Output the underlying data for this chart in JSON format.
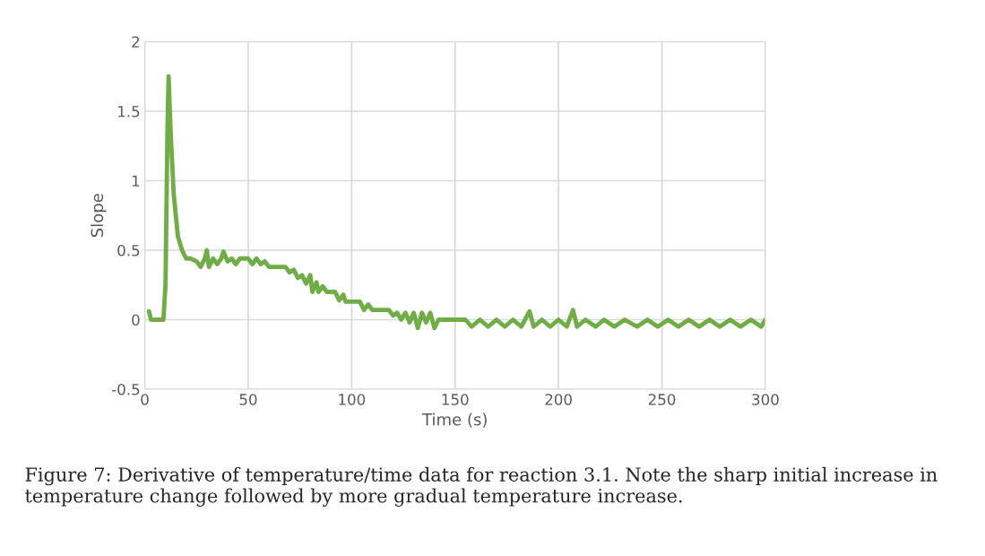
{
  "chart_data": {
    "type": "line",
    "xlabel": "Time (s)",
    "ylabel": "Slope",
    "annotations": [
      "Figure 7: Derivative of temperature/time data for reaction 3.1. Note the sharp initial increase in temperature change followed by more gradual temperature increase."
    ],
    "xlim": [
      0,
      300
    ],
    "xticks": [
      0,
      50,
      100,
      150,
      200,
      250,
      300
    ],
    "ylim": [
      -0.5,
      2
    ],
    "yticks": [
      -0.5,
      0,
      0.5,
      1,
      1.5,
      2
    ],
    "grid": true,
    "series": [
      {
        "color": "#70ad47",
        "x": [
          2,
          3,
          9,
          10,
          11,
          11.5,
          12.5,
          14,
          16,
          18,
          20,
          22,
          25,
          27,
          29,
          30,
          31,
          33,
          35,
          37,
          38,
          40,
          42,
          44,
          46,
          50,
          52,
          54,
          56,
          58,
          60,
          68,
          70,
          72,
          74,
          76,
          78,
          80,
          81,
          83,
          84,
          86,
          88,
          92,
          94,
          96,
          97,
          104,
          106,
          108,
          110,
          118,
          120,
          122,
          124,
          126,
          128,
          130,
          132,
          134,
          136,
          138,
          140,
          142,
          155,
          158,
          162,
          166,
          170,
          174,
          178,
          182,
          186,
          188,
          192,
          196,
          200,
          204,
          207,
          209,
          213,
          218,
          222,
          227,
          232,
          238,
          243,
          248,
          253,
          258,
          263,
          268,
          273,
          278,
          283,
          288,
          293,
          298,
          300
        ],
        "values": [
          0.06,
          0,
          0,
          0.25,
          1.4,
          1.75,
          1.35,
          0.9,
          0.6,
          0.5,
          0.44,
          0.44,
          0.42,
          0.38,
          0.44,
          0.5,
          0.38,
          0.44,
          0.4,
          0.44,
          0.49,
          0.42,
          0.44,
          0.4,
          0.44,
          0.44,
          0.4,
          0.44,
          0.4,
          0.42,
          0.38,
          0.38,
          0.34,
          0.36,
          0.3,
          0.32,
          0.26,
          0.32,
          0.2,
          0.27,
          0.2,
          0.24,
          0.2,
          0.2,
          0.14,
          0.18,
          0.13,
          0.13,
          0.07,
          0.11,
          0.07,
          0.07,
          0.03,
          0.05,
          0,
          0.05,
          -0.02,
          0.05,
          -0.06,
          0.05,
          -0.02,
          0.05,
          -0.06,
          0,
          0,
          -0.05,
          0,
          -0.05,
          0,
          -0.05,
          0,
          -0.05,
          0.06,
          -0.05,
          0,
          -0.05,
          0,
          -0.05,
          0.07,
          -0.05,
          0,
          -0.05,
          0,
          -0.05,
          0,
          -0.05,
          0,
          -0.05,
          0,
          -0.05,
          0,
          -0.05,
          0,
          -0.05,
          0,
          -0.05,
          0,
          -0.05,
          0
        ]
      }
    ]
  }
}
